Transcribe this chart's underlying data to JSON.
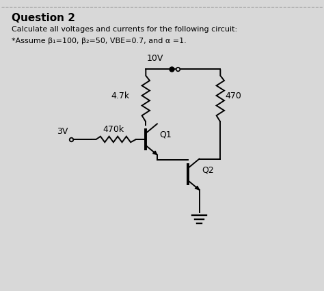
{
  "title": "Question 2",
  "subtitle_line1": "Calculate all voltages and currents for the following circuit:",
  "subtitle_line2": "*Assume β₁=100, β₂=50, VBE=0.7, and α =1.",
  "background_color": "#d8d8d8",
  "text_color": "#000000",
  "line_color": "#000000",
  "label_10V": "10V",
  "label_4_7k": "4.7k",
  "label_470k": "470k",
  "label_470": "470",
  "label_3V": "3V",
  "label_Q1": "Q1",
  "label_Q2": "Q2",
  "fig_w": 4.74,
  "fig_h": 4.27,
  "dpi": 100
}
